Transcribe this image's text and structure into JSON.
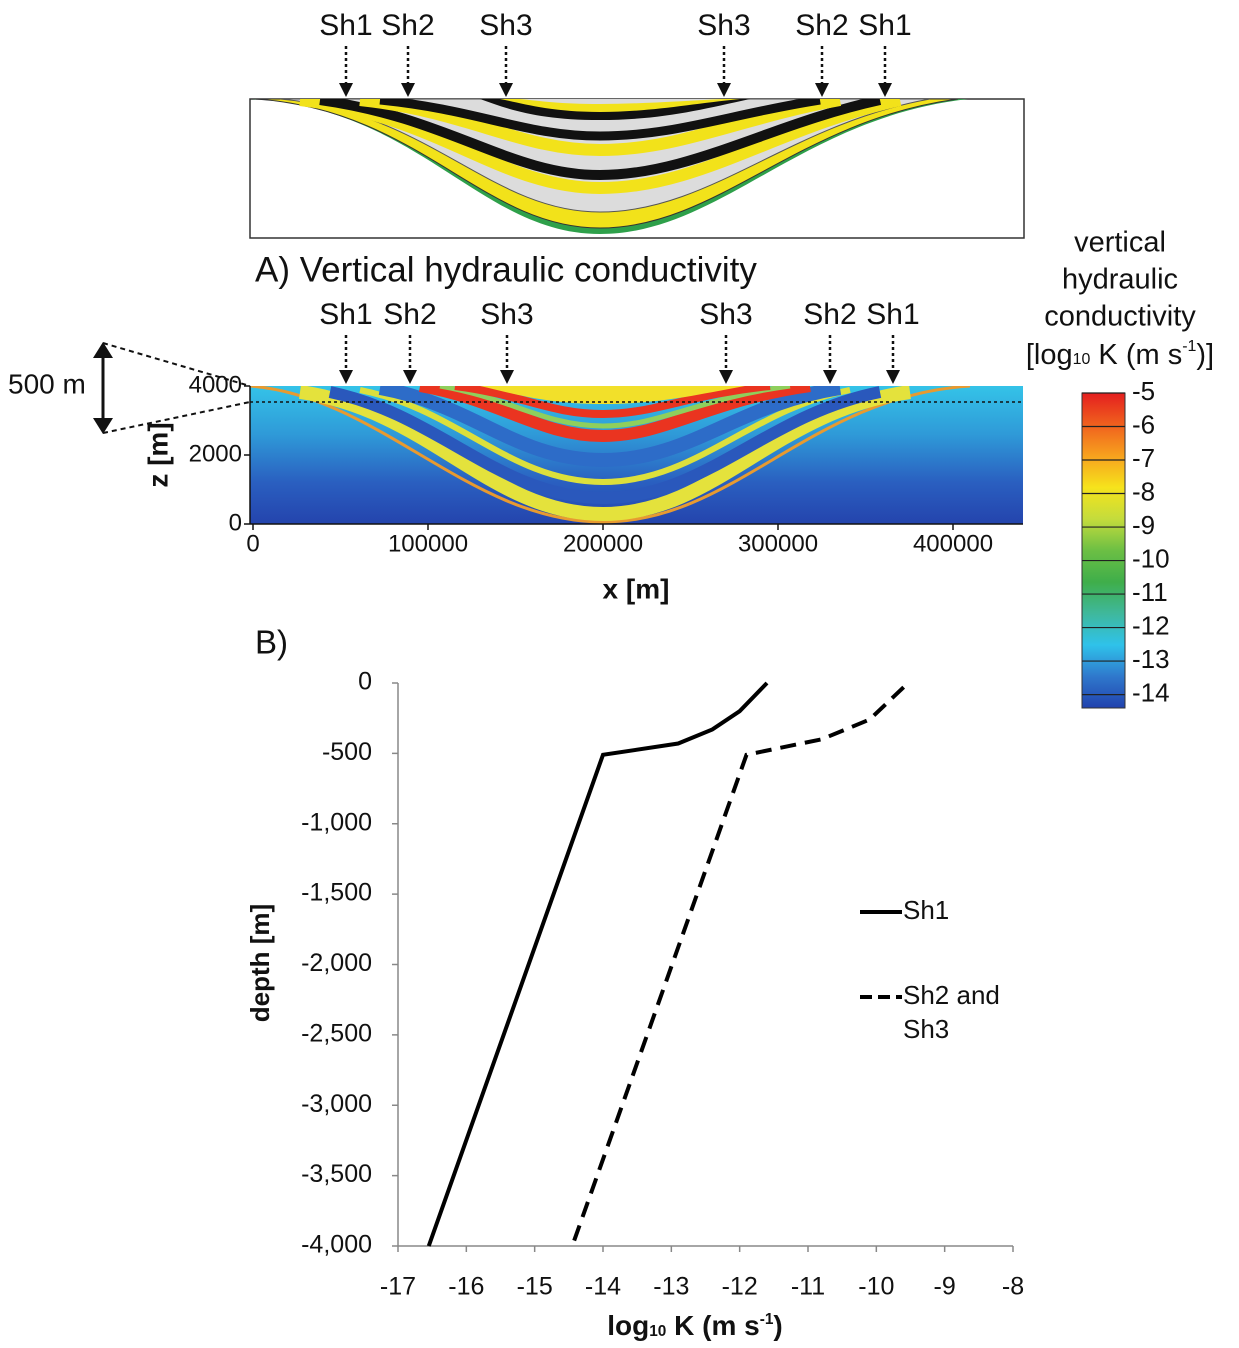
{
  "chart_data": [
    {
      "type": "section",
      "title": "A) Vertical hydraulic conductivity",
      "top_labels": [
        "Sh1",
        "Sh2",
        "Sh3",
        "Sh3",
        "Sh2",
        "Sh1"
      ],
      "labels": [
        "Sh1",
        "Sh2",
        "Sh3",
        "Sh3",
        "Sh2",
        "Sh1"
      ],
      "annotation": "500 m",
      "x_label": "x [m]",
      "y_label": "z [m]",
      "xlim": [
        0,
        440000
      ],
      "xticks": [
        0,
        100000,
        200000,
        300000,
        400000
      ],
      "ylim": [
        0,
        4000
      ],
      "yticks": [
        0,
        2000,
        4000
      ],
      "colorbar": {
        "title": [
          "vertical",
          "hydraulic",
          "conductivity"
        ],
        "unit_parts": [
          "[log",
          "10",
          " K (m s",
          "-1",
          ")]"
        ],
        "clim": [
          -14.4,
          -5
        ],
        "ticks": [
          -5,
          -6,
          -7,
          -8,
          -9,
          -10,
          -11,
          -12,
          -13,
          -14
        ],
        "colors": [
          "#e41f1f",
          "#f0601e",
          "#f7a21e",
          "#f6e31c",
          "#c4dc3c",
          "#6cbf44",
          "#3fae4a",
          "#3fb89c",
          "#2fc2ea",
          "#2f78cc",
          "#2142ae"
        ]
      }
    },
    {
      "type": "line",
      "title": "B)",
      "x_label_parts": [
        "log",
        "10",
        " K (m s",
        "-1",
        ")"
      ],
      "y_label": "depth [m]",
      "xlim": [
        -17,
        -8
      ],
      "xticks": [
        -17,
        -16,
        -15,
        -14,
        -13,
        -12,
        -11,
        -10,
        -9,
        -8
      ],
      "ylim": [
        -4000,
        0
      ],
      "yticks": [
        0,
        -500,
        {
          "value": -1000,
          "label": "-1,000"
        },
        {
          "value": -1500,
          "label": "-1,500"
        },
        {
          "value": -2000,
          "label": "-2,000"
        },
        {
          "value": -2500,
          "label": "-2,500"
        },
        {
          "value": -3000,
          "label": "-3,000"
        },
        {
          "value": -3500,
          "label": "-3,500"
        },
        {
          "value": -4000,
          "label": "-4,000"
        }
      ],
      "legend": "right",
      "series": [
        {
          "name": "Sh1",
          "color": "#000000",
          "style": "solid",
          "x": [
            -11.6,
            -12.0,
            -12.4,
            -12.9,
            -14.0,
            -16.55
          ],
          "values": [
            0,
            -200,
            -330,
            -430,
            -510,
            -4000
          ]
        },
        {
          "name": "Sh2 and Sh3",
          "color": "#000000",
          "style": "dashed",
          "x": [
            -9.6,
            -10.1,
            -10.8,
            -11.9,
            -14.45
          ],
          "values": [
            -30,
            -260,
            -400,
            -510,
            -4000
          ]
        }
      ]
    }
  ]
}
